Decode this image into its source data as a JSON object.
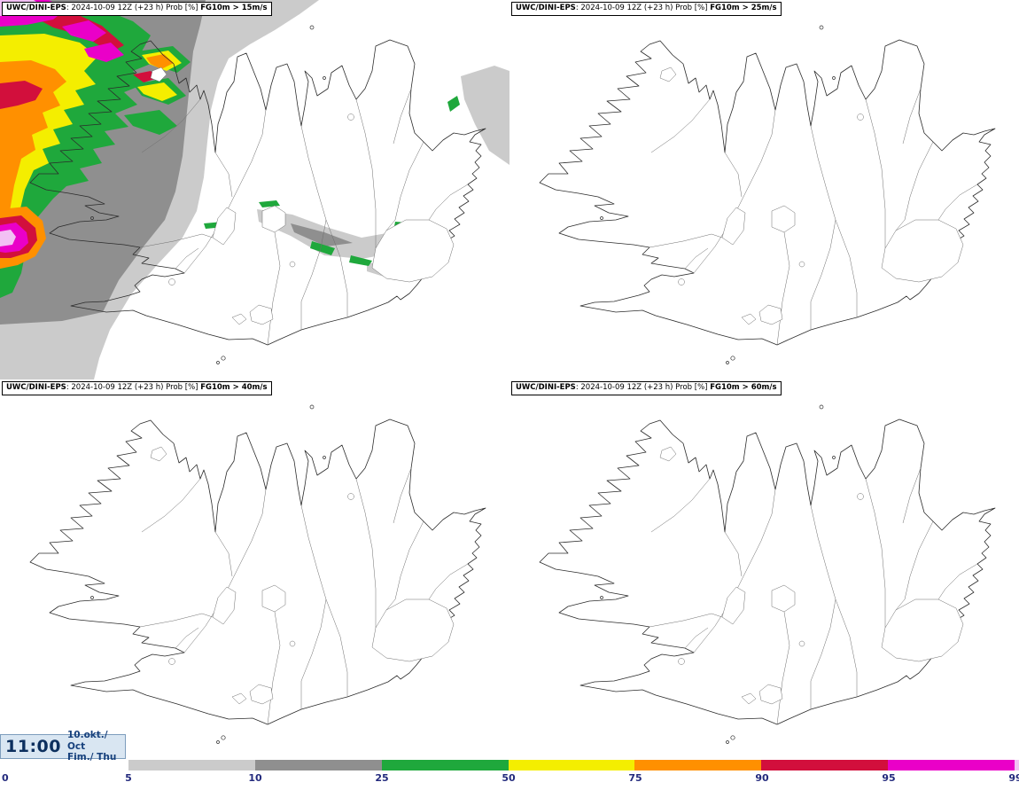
{
  "app": {
    "product": "UWC/DINI-EPS"
  },
  "panels": [
    {
      "brand": "UWC/DINI-EPS",
      "meta": ": 2024-10-09 12Z (+23 h) Prob [%] ",
      "threshold": "FG10m > 15m/s"
    },
    {
      "brand": "UWC/DINI-EPS",
      "meta": ": 2024-10-09 12Z (+23 h) Prob [%] ",
      "threshold": "FG10m > 25m/s"
    },
    {
      "brand": "UWC/DINI-EPS",
      "meta": ": 2024-10-09 12Z (+23 h) Prob [%] ",
      "threshold": "FG10m > 40m/s"
    },
    {
      "brand": "UWC/DINI-EPS",
      "meta": ": 2024-10-09 12Z (+23 h) Prob [%] ",
      "threshold": "FG10m > 60m/s"
    }
  ],
  "footer": {
    "time": "11:00",
    "date": "10.okt./ Oct",
    "day": "Fim./ Thu",
    "legend": {
      "labels": [
        "0",
        "5",
        "10",
        "25",
        "50",
        "75",
        "90",
        "95",
        "99"
      ],
      "colors": [
        "#cbcbcb",
        "#8f8f8f",
        "#1fa83c",
        "#f4ee00",
        "#ff9000",
        "#d20f3c",
        "#ea00c8",
        "#f2c0f4"
      ]
    }
  }
}
